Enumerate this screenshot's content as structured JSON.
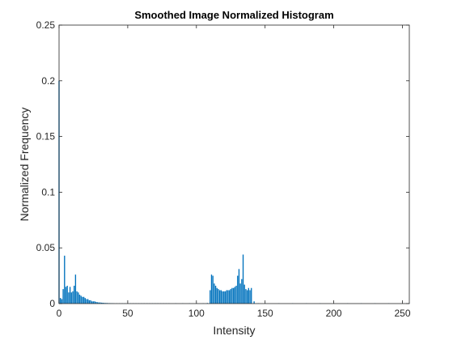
{
  "chart_data": {
    "type": "bar",
    "title": "Smoothed Image Normalized Histogram",
    "xlabel": "Intensity",
    "ylabel": "Normalized Frequency",
    "xlim": [
      0,
      255
    ],
    "ylim": [
      0,
      0.25
    ],
    "x_ticks": [
      "0",
      "50",
      "100",
      "150",
      "200",
      "250"
    ],
    "y_ticks": [
      "0",
      "0.05",
      "0.1",
      "0.15",
      "0.2",
      "0.25"
    ],
    "grid": false,
    "bar_color": "#0072BD",
    "series": [
      {
        "x": [
          0,
          1,
          2,
          3,
          4,
          5,
          6,
          7,
          8,
          9,
          10,
          11,
          12,
          13,
          14,
          15,
          16,
          17,
          18,
          19,
          20,
          21,
          22,
          23,
          24,
          25,
          26,
          27,
          28,
          29,
          30,
          31,
          32,
          33,
          34,
          35,
          36,
          37,
          38,
          39,
          40,
          42,
          44,
          46,
          48,
          50,
          52,
          54,
          56,
          58,
          60,
          62,
          64,
          66,
          68,
          70,
          72,
          74,
          76,
          78,
          80,
          85,
          90,
          95,
          100,
          105,
          108,
          110,
          111,
          112,
          113,
          114,
          115,
          116,
          117,
          118,
          119,
          120,
          121,
          122,
          123,
          124,
          125,
          126,
          127,
          128,
          129,
          130,
          131,
          132,
          133,
          134,
          135,
          136,
          137,
          138,
          139,
          140,
          142,
          145,
          150,
          160,
          170,
          180,
          190,
          200,
          210,
          220,
          230,
          240,
          250,
          255
        ],
        "values": [
          0.2,
          0.005,
          0.004,
          0.013,
          0.043,
          0.015,
          0.016,
          0.01,
          0.015,
          0.01,
          0.011,
          0.016,
          0.026,
          0.011,
          0.01,
          0.008,
          0.007,
          0.006,
          0.006,
          0.005,
          0.004,
          0.004,
          0.003,
          0.003,
          0.002,
          0.002,
          0.002,
          0.0015,
          0.0012,
          0.001,
          0.001,
          0.0008,
          0.0007,
          0.0006,
          0.0005,
          0.0005,
          0.0004,
          0.0004,
          0.0003,
          0.0003,
          0.0002,
          0.0002,
          0.0002,
          0.0001,
          0.0001,
          0.0001,
          0.0001,
          0.0001,
          0.0001,
          0.0001,
          0.0001,
          0.0001,
          0.0001,
          0.0001,
          0.0001,
          0.0001,
          0.0001,
          0.0001,
          0.0001,
          0.0001,
          0.0001,
          0.0001,
          0.0001,
          0.0001,
          0.0001,
          0.0002,
          0.0005,
          0.012,
          0.026,
          0.025,
          0.018,
          0.016,
          0.014,
          0.013,
          0.012,
          0.012,
          0.011,
          0.011,
          0.011,
          0.012,
          0.012,
          0.012,
          0.013,
          0.014,
          0.014,
          0.015,
          0.016,
          0.025,
          0.031,
          0.018,
          0.022,
          0.044,
          0.017,
          0.013,
          0.012,
          0.014,
          0.012,
          0.014,
          0.002,
          0.0003,
          0.0001,
          0.0001,
          0.0001,
          0.0001,
          0.0001,
          0.0001,
          0.0001,
          0.0001,
          0.0001,
          0.0001,
          0.0001,
          0.0001
        ]
      }
    ]
  }
}
